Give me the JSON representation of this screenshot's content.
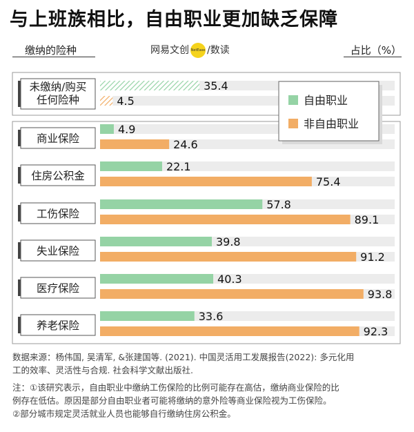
{
  "title": "与上班族相比，自由职业更加缺乏保障",
  "header": {
    "left": "缴纳的险种",
    "brand_left": "网易",
    "brand_mid": "文创",
    "brand_dot": "NetEase",
    "brand_right": "数读",
    "brand_sep": "/",
    "right": "占比（%）"
  },
  "colors": {
    "free": "#95d3a5",
    "nonfree": "#f2ad65",
    "track": "#ececec"
  },
  "chart_data": {
    "type": "bar",
    "orientation": "horizontal",
    "xlim": [
      0,
      100
    ],
    "legend": {
      "placement": "top-right",
      "entries": [
        "自由职业",
        "非自由职业"
      ]
    },
    "series": [
      {
        "name": "自由职业",
        "values": [
          35.4,
          4.9,
          22.1,
          57.8,
          39.8,
          40.3,
          33.6
        ]
      },
      {
        "name": "非自由职业",
        "values": [
          4.5,
          24.6,
          75.4,
          89.1,
          91.2,
          93.8,
          92.3
        ]
      }
    ],
    "categories": [
      "未缴纳/购买\n任何险种",
      "商业保险",
      "住房公积金",
      "工伤保险",
      "失业保险",
      "医疗保险",
      "养老保险"
    ]
  },
  "source": [
    "数据来源：杨伟国, 吴清军, &张建国等. (2021). 中国灵活用工发展报告(2022): 多元化用",
    "工的效率、灵活性与合规. 社会科学文献出版社."
  ],
  "notes": [
    "注：①该研究表示，自由职业中缴纳工伤保险的比例可能存在高估，缴纳商业保险的比",
    "例存在低估。原因是部分自由职业者可能将缴纳的意外险等商业保险视为工伤保险。",
    "②部分城市规定灵活就业人员也能够自行缴纳住房公积金。"
  ]
}
